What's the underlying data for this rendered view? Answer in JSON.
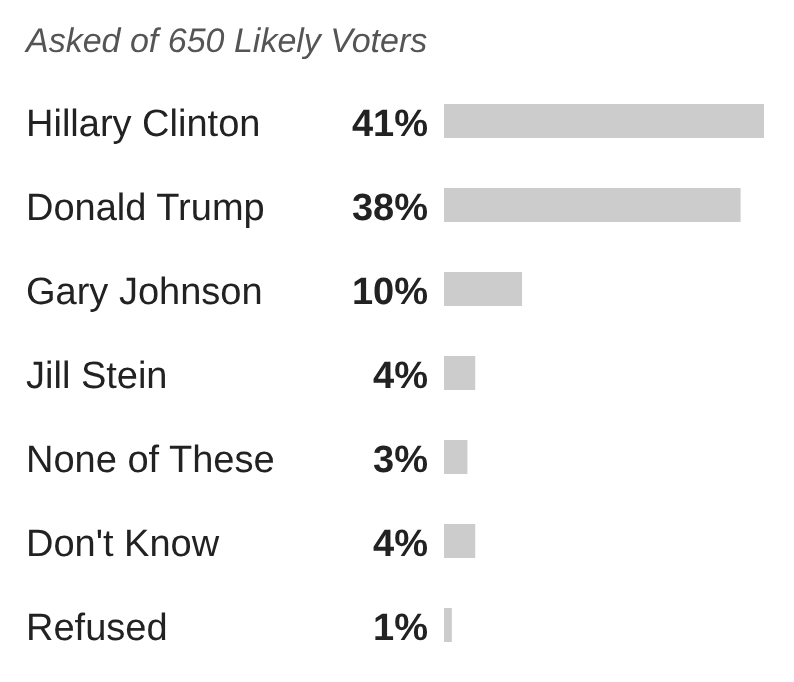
{
  "chart_data": {
    "type": "bar",
    "orientation": "horizontal",
    "title": "Asked of 650 Likely Voters",
    "categories": [
      "Hillary Clinton",
      "Donald Trump",
      "Gary Johnson",
      "Jill Stein",
      "None of These",
      "Don't Know",
      "Refused"
    ],
    "values": [
      41,
      38,
      10,
      4,
      3,
      4,
      1
    ],
    "value_labels": [
      "41%",
      "38%",
      "10%",
      "4%",
      "3%",
      "4%",
      "1%"
    ],
    "color": "#cccccc"
  }
}
